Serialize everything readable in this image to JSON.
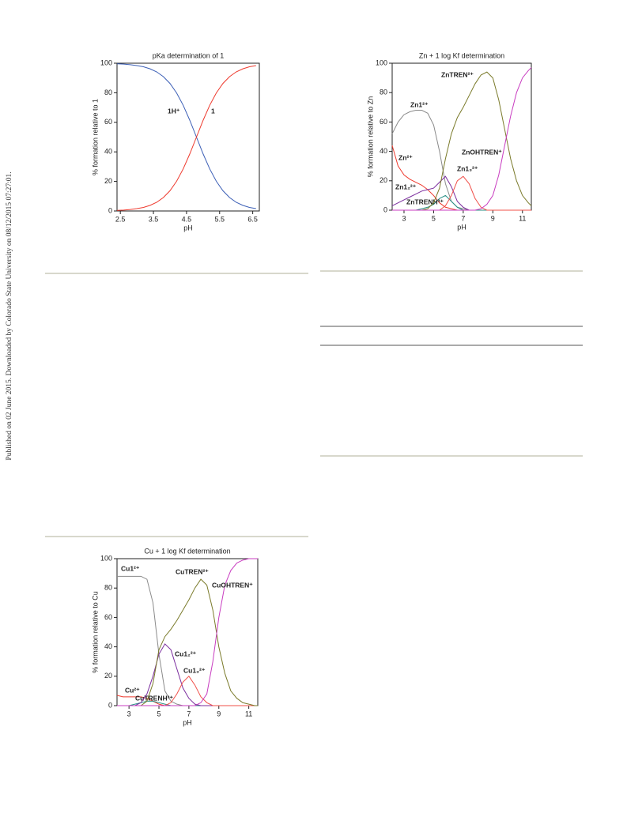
{
  "sidebar_text": "Published on 02 June 2015. Downloaded by Colorado State University on 08/12/2015 07:27:01.",
  "chart_data": [
    {
      "type": "line",
      "title": "pKa determination of 1",
      "x_label": "pH",
      "y_label": "% formation relative to 1",
      "x": [
        2.4,
        2.6,
        2.8,
        3.0,
        3.2,
        3.4,
        3.6,
        3.8,
        4.0,
        4.2,
        4.4,
        4.6,
        4.8,
        5.0,
        5.2,
        5.4,
        5.6,
        5.8,
        6.0,
        6.2,
        6.4,
        6.6
      ],
      "xlim": [
        2.4,
        6.7
      ],
      "xticks": [
        2.5,
        3.5,
        4.5,
        5.5,
        6.5
      ],
      "ylim": [
        0,
        100
      ],
      "yticks": [
        0,
        20,
        40,
        60,
        80,
        100
      ],
      "series": [
        {
          "name": "1H⁺",
          "color": "#3c5fb6",
          "values": [
            99.6,
            99.4,
            99.0,
            98.4,
            97.6,
            96.2,
            94.1,
            90.9,
            86.3,
            79.9,
            71.5,
            61.3,
            50,
            38.7,
            28.5,
            20.1,
            13.7,
            9.1,
            5.9,
            3.8,
            2.4,
            1.6
          ]
        },
        {
          "name": "1",
          "color": "#ee3a2e",
          "values": [
            0.4,
            0.6,
            1.0,
            1.6,
            2.4,
            3.8,
            5.9,
            9.1,
            13.7,
            20.1,
            28.5,
            38.7,
            50,
            61.3,
            71.5,
            79.9,
            86.3,
            90.9,
            94.1,
            96.2,
            97.6,
            98.4
          ]
        }
      ]
    },
    {
      "type": "line",
      "title": "Zn + 1 log Kf determination",
      "x_label": "pH",
      "y_label": "% formation relative to Zn",
      "x": [
        2.2,
        2.6,
        3.0,
        3.4,
        3.8,
        4.2,
        4.6,
        5.0,
        5.4,
        5.8,
        6.2,
        6.6,
        7.0,
        7.4,
        7.8,
        8.2,
        8.6,
        9.0,
        9.4,
        9.8,
        10.2,
        10.6,
        11.0,
        11.4,
        11.6
      ],
      "xlim": [
        2.2,
        11.6
      ],
      "xticks": [
        3,
        5,
        7,
        9,
        11
      ],
      "ylim": [
        0,
        100
      ],
      "yticks": [
        0,
        20,
        40,
        60,
        80,
        100
      ],
      "series": [
        {
          "name": "Zn1²⁺",
          "color": "#8a8a8a",
          "values": [
            52,
            60,
            65,
            67,
            68,
            68,
            66,
            58,
            40,
            18,
            6,
            2,
            1,
            0,
            0,
            0,
            0,
            0,
            0,
            0,
            0,
            0,
            0,
            0,
            0
          ]
        },
        {
          "name": "Zn²⁺",
          "color": "#ee3a2e",
          "values": [
            44,
            30,
            24,
            21,
            19,
            17,
            14,
            10,
            5,
            2,
            1,
            0,
            0,
            0,
            0,
            0,
            0,
            0,
            0,
            0,
            0,
            0,
            0,
            0,
            0
          ]
        },
        {
          "name": "Zn1₂²⁺",
          "color": "#7b2d9e",
          "values": [
            3,
            5,
            7,
            9,
            11,
            13,
            14,
            15,
            19,
            23,
            16,
            6,
            2,
            0,
            0,
            0,
            0,
            0,
            0,
            0,
            0,
            0,
            0,
            0,
            0
          ]
        },
        {
          "name": "ZnTRENH³⁺",
          "color": "#2a8f86",
          "values": [
            0,
            0,
            0,
            0,
            0,
            1,
            2,
            4,
            8,
            10,
            6,
            2,
            0,
            0,
            0,
            0,
            0,
            0,
            0,
            0,
            0,
            0,
            0,
            0,
            0
          ]
        },
        {
          "name": "Zn1₃²⁺",
          "color": "#f0504a",
          "values": [
            0,
            0,
            0,
            0,
            0,
            0,
            0,
            0,
            0,
            3,
            10,
            20,
            23,
            18,
            8,
            2,
            0,
            0,
            0,
            0,
            0,
            0,
            0,
            0,
            0
          ]
        },
        {
          "name": "ZnTREN²⁺",
          "color": "#7a7a2a",
          "values": [
            0,
            0,
            0,
            0,
            0,
            0,
            1,
            5,
            15,
            35,
            52,
            63,
            70,
            78,
            86,
            92,
            94,
            90,
            75,
            55,
            35,
            20,
            10,
            5,
            3
          ]
        },
        {
          "name": "ZnOHTREN⁺",
          "color": "#c83cc0",
          "values": [
            0,
            0,
            0,
            0,
            0,
            0,
            0,
            0,
            0,
            0,
            0,
            0,
            0,
            0,
            0,
            1,
            4,
            10,
            24,
            44,
            64,
            80,
            90,
            95,
            97
          ]
        }
      ]
    },
    {
      "type": "line",
      "title": "Cu + 1 log Kf determination",
      "x_label": "pH",
      "y_label": "% formation relative to Cu",
      "x": [
        2.2,
        2.6,
        3.0,
        3.4,
        3.8,
        4.2,
        4.6,
        5.0,
        5.4,
        5.8,
        6.2,
        6.6,
        7.0,
        7.4,
        7.8,
        8.2,
        8.6,
        9.0,
        9.4,
        9.8,
        10.2,
        10.6,
        11.0,
        11.4,
        11.6
      ],
      "xlim": [
        2.2,
        11.6
      ],
      "xticks": [
        3,
        5,
        7,
        9,
        11
      ],
      "ylim": [
        0,
        100
      ],
      "yticks": [
        0,
        20,
        40,
        60,
        80,
        100
      ],
      "series": [
        {
          "name": "Cu1²⁺",
          "color": "#8a8a8a",
          "values": [
            88,
            88,
            88,
            88,
            88,
            86,
            70,
            35,
            10,
            3,
            1,
            0,
            0,
            0,
            0,
            0,
            0,
            0,
            0,
            0,
            0,
            0,
            0,
            0,
            0
          ]
        },
        {
          "name": "Cu²⁺",
          "color": "#ee3a2e",
          "values": [
            7,
            6,
            6,
            6,
            6,
            5,
            3,
            1,
            0,
            0,
            0,
            0,
            0,
            0,
            0,
            0,
            0,
            0,
            0,
            0,
            0,
            0,
            0,
            0,
            0
          ]
        },
        {
          "name": "CuTRENH³⁺",
          "color": "#2a8f86",
          "values": [
            0,
            0,
            0,
            1,
            2,
            3,
            3,
            2,
            1,
            0,
            0,
            0,
            0,
            0,
            0,
            0,
            0,
            0,
            0,
            0,
            0,
            0,
            0,
            0,
            0
          ]
        },
        {
          "name": "Cu1₂²⁺",
          "color": "#7b2d9e",
          "values": [
            0,
            0,
            0,
            0,
            2,
            8,
            20,
            35,
            42,
            38,
            25,
            12,
            5,
            1,
            0,
            0,
            0,
            0,
            0,
            0,
            0,
            0,
            0,
            0,
            0
          ]
        },
        {
          "name": "Cu1₃²⁺",
          "color": "#f0504a",
          "values": [
            0,
            0,
            0,
            0,
            0,
            0,
            0,
            0,
            0,
            2,
            8,
            16,
            20,
            14,
            6,
            2,
            0,
            0,
            0,
            0,
            0,
            0,
            0,
            0,
            0
          ]
        },
        {
          "name": "CuTREN²⁺",
          "color": "#7a7a2a",
          "values": [
            0,
            0,
            0,
            0,
            0,
            3,
            15,
            38,
            47,
            52,
            58,
            65,
            72,
            80,
            86,
            82,
            65,
            40,
            22,
            10,
            5,
            2,
            1,
            0,
            0
          ]
        },
        {
          "name": "CuOHTREN⁺",
          "color": "#c83cc0",
          "values": [
            0,
            0,
            0,
            0,
            0,
            0,
            0,
            0,
            0,
            0,
            0,
            0,
            0,
            0,
            2,
            8,
            30,
            60,
            82,
            92,
            97,
            99,
            100,
            100,
            100
          ]
        }
      ]
    }
  ]
}
